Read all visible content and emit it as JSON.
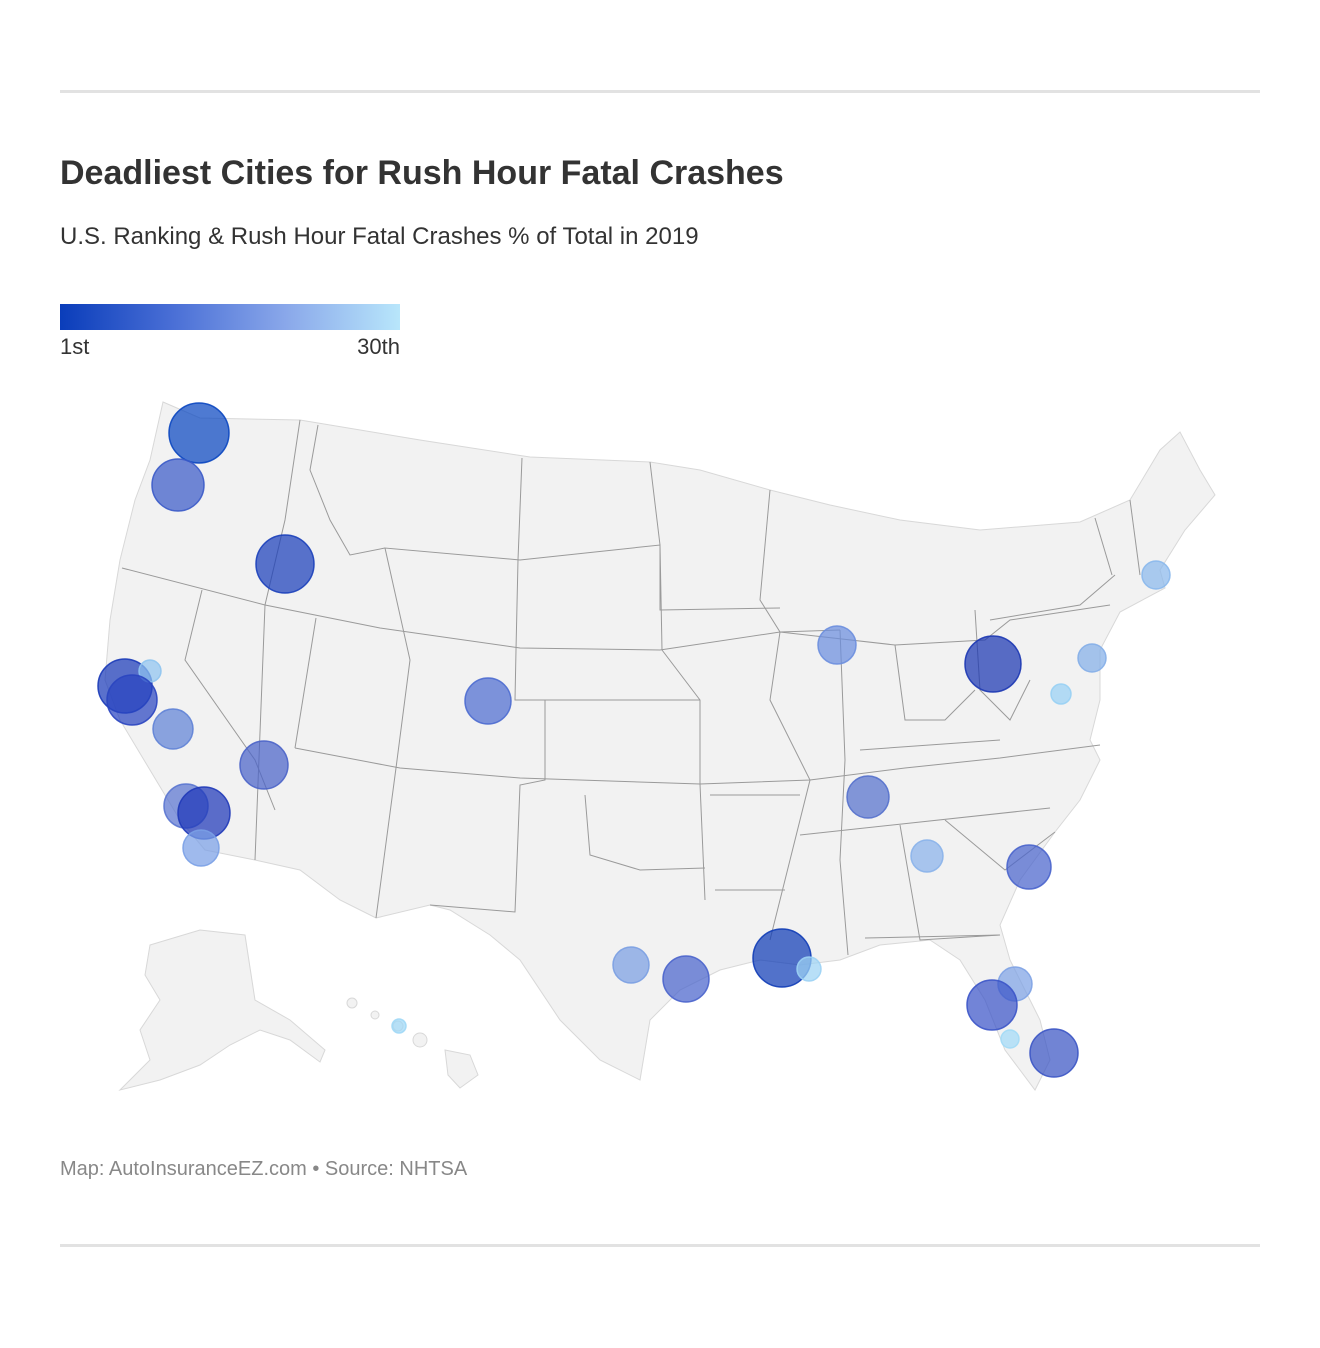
{
  "header": {
    "title": "Deadliest Cities for Rush Hour Fatal Crashes",
    "subtitle": "U.S. Ranking & Rush Hour Fatal Crashes % of Total in 2019"
  },
  "legend": {
    "min_label": "1st",
    "max_label": "30th",
    "colors": [
      "#0a3dba",
      "#4a6fd6",
      "#8aa8ea",
      "#b8e6fb"
    ]
  },
  "map": {
    "land_color": "#f2f2f2",
    "border_color": "#999999"
  },
  "footer": {
    "credit": "Map: AutoInsuranceEZ.com • Source: NHTSA"
  }
}
